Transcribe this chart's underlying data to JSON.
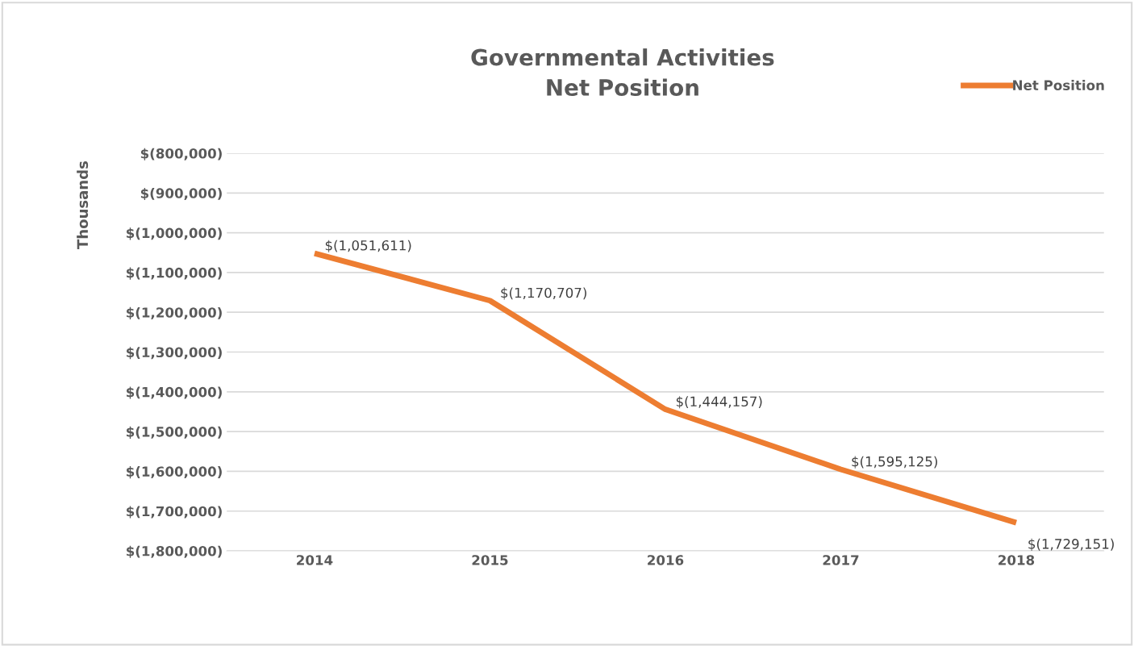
{
  "chart_data": {
    "type": "line",
    "title": "Governmental Activities\nNet Position",
    "ylabel": "Thousands",
    "categories": [
      "2014",
      "2015",
      "2016",
      "2017",
      "2018"
    ],
    "series": [
      {
        "name": "Net Position",
        "color": "#ed7d31",
        "values": [
          -1051611,
          -1170707,
          -1444157,
          -1595125,
          -1729151
        ],
        "value_labels": [
          "$(1,051,611)",
          "$(1,170,707)",
          "$(1,444,157)",
          "$(1,595,125)",
          "$(1,729,151)"
        ]
      }
    ],
    "ylim": [
      -1800000,
      -800000
    ],
    "yticks": [
      {
        "value": -1800000,
        "label": "$(1,800,000)"
      },
      {
        "value": -1700000,
        "label": "$(1,700,000)"
      },
      {
        "value": -1600000,
        "label": "$(1,600,000)"
      },
      {
        "value": -1500000,
        "label": "$(1,500,000)"
      },
      {
        "value": -1400000,
        "label": "$(1,400,000)"
      },
      {
        "value": -1300000,
        "label": "$(1,300,000)"
      },
      {
        "value": -1200000,
        "label": "$(1,200,000)"
      },
      {
        "value": -1100000,
        "label": "$(1,100,000)"
      },
      {
        "value": -1000000,
        "label": "$(1,000,000)"
      },
      {
        "value": -900000,
        "label": "$(900,000)"
      },
      {
        "value": -800000,
        "label": "$(800,000)"
      }
    ],
    "grid": "y",
    "legend": "top right",
    "marker": "none",
    "line_style": "solid"
  }
}
